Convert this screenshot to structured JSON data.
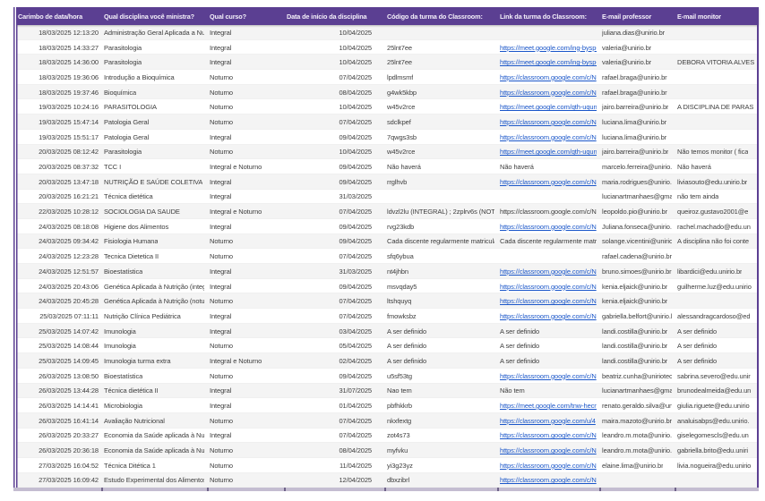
{
  "app": {
    "kind": "published-spreadsheet-responses",
    "colors": {
      "header_bg": "#5b3f92",
      "header_text": "#f4f0fa",
      "link": "#1a56c9",
      "row_alt_bg": "#f4f4f4",
      "row_bg": "#ffffff",
      "body_text": "#3d3d3d",
      "frame_border": "#5b3f92",
      "bottom_bar": "#c4bdd1"
    }
  },
  "table": {
    "columns": [
      "Carimbo de data/hora",
      "Qual disciplina você ministra?",
      "Qual curso?",
      "Data de início da disciplina",
      "Código da turma do Classroom:",
      "Link da turma do Classroom:",
      "E-mail professor",
      "E-mail monitor"
    ],
    "rows": [
      {
        "timestamp": "18/03/2025 12:13:20",
        "disciplina": "Administração Geral Aplicada a Nutr",
        "curso": "Integral",
        "inicio": "10/04/2025",
        "codigo": "",
        "link": "",
        "link_is_url": false,
        "professor": "juliana.dias@unirio.br",
        "monitor": ""
      },
      {
        "timestamp": "18/03/2025 14:33:27",
        "disciplina": "Parasitologia",
        "curso": "Integral",
        "inicio": "10/04/2025",
        "codigo": "25lnt7ee",
        "link": "https://meet.google.com/ing-bysp-",
        "link_is_url": true,
        "professor": "valeria@unirio.br",
        "monitor": ""
      },
      {
        "timestamp": "18/03/2025 14:36:00",
        "disciplina": "Parasitologia",
        "curso": "Integral",
        "inicio": "10/04/2025",
        "codigo": "25lnt7ee",
        "link": "https://meet.google.com/ing-bysp-",
        "link_is_url": true,
        "professor": "valeria@unirio.br",
        "monitor": "DEBORA VITORIA ALVES"
      },
      {
        "timestamp": "18/03/2025 19:36:06",
        "disciplina": "Introdução a Bioquímica",
        "curso": "Noturno",
        "inicio": "07/04/2025",
        "codigo": "lpdlmsmf",
        "link": "https://classroom.google.com/c/N",
        "link_is_url": true,
        "professor": "rafael.braga@unirio.br",
        "monitor": ""
      },
      {
        "timestamp": "18/03/2025 19:37:46",
        "disciplina": "Bioquímica",
        "curso": "Noturno",
        "inicio": "08/04/2025",
        "codigo": "g4wk5kbp",
        "link": "https://classroom.google.com/c/N",
        "link_is_url": true,
        "professor": "rafael.braga@unirio.br",
        "monitor": ""
      },
      {
        "timestamp": "19/03/2025 10:24:16",
        "disciplina": "PARASITOLOGIA",
        "curso": "Noturno",
        "inicio": "10/04/2025",
        "codigo": "w45v2rce",
        "link": "https://meet.google.com/qth-uqun",
        "link_is_url": true,
        "professor": "jairo.barreira@unirio.br",
        "monitor": "A DISCIPLINA DE PARAS"
      },
      {
        "timestamp": "19/03/2025 15:47:14",
        "disciplina": "Patologia Geral",
        "curso": "Noturno",
        "inicio": "07/04/2025",
        "codigo": "sdclkpef",
        "link": "https://classroom.google.com/c/N",
        "link_is_url": true,
        "professor": "luciana.lima@unirio.br",
        "monitor": ""
      },
      {
        "timestamp": "19/03/2025 15:51:17",
        "disciplina": "Patologia Geral",
        "curso": "Integral",
        "inicio": "09/04/2025",
        "codigo": "7qwgs3sb",
        "link": "https://classroom.google.com/c/N",
        "link_is_url": true,
        "professor": "luciana.lima@unirio.br",
        "monitor": ""
      },
      {
        "timestamp": "20/03/2025 08:12:42",
        "disciplina": "Parasitologia",
        "curso": "Noturno",
        "inicio": "10/04/2025",
        "codigo": "w45v2rce",
        "link": "https://meet.google.com/qth-uqun",
        "link_is_url": true,
        "professor": "jairo.barreira@unirio.br",
        "monitor": "Não temos monitor ( fica"
      },
      {
        "timestamp": "20/03/2025 08:37:32",
        "disciplina": "TCC I",
        "curso": "Integral e Noturno",
        "inicio": "09/04/2025",
        "codigo": "Não haverá",
        "link": "Não haverá",
        "link_is_url": false,
        "professor": "marcelo.ferreira@unirio.b",
        "monitor": "Não haverá"
      },
      {
        "timestamp": "20/03/2025 13:47:18",
        "disciplina": "NUTRIÇÃO E SAÚDE COLETIVA",
        "curso": "Integral",
        "inicio": "09/04/2025",
        "codigo": "rrglhvb",
        "link": "https://classroom.google.com/c/N",
        "link_is_url": true,
        "professor": "maria.rodrigues@unirio.b",
        "monitor": "liviasouto@edu.unirio.br"
      },
      {
        "timestamp": "20/03/2025 16:21:21",
        "disciplina": "Técnica dietética",
        "curso": "Integral",
        "inicio": "31/03/2025",
        "codigo": "",
        "link": "",
        "link_is_url": false,
        "professor": "lucianartmanhaes@gma",
        "monitor": "não tem ainda"
      },
      {
        "timestamp": "22/03/2025 10:28:12",
        "disciplina": "SOCIOLOGIA DA SAUDE",
        "curso": "Integral e Noturno",
        "inicio": "07/04/2025",
        "codigo": "ldvzl2lu (INTEGRAL) ; 2zplrv6s (NOTU",
        "link": "https://classroom.google.com/c/N",
        "link_is_url": false,
        "professor": "leopoldo.pio@unirio.br",
        "monitor": "queiroz.gustavo2001@e"
      },
      {
        "timestamp": "24/03/2025 08:18:08",
        "disciplina": "Higiene dos Alimentos",
        "curso": "Integral",
        "inicio": "09/04/2025",
        "codigo": "rvg23kdb",
        "link": "https://classroom.google.com/c/N",
        "link_is_url": true,
        "professor": "Juliana.fonseca@unirio.b",
        "monitor": "rachel.machado@edu.un"
      },
      {
        "timestamp": "24/03/2025 09:34:42",
        "disciplina": "Fisiologia Humana",
        "curso": "Noturno",
        "inicio": "09/04/2025",
        "codigo": "Cada discente regularmente matricula",
        "link": "Cada discente regularmente matric",
        "link_is_url": false,
        "professor": "solange.vicentini@unirio",
        "monitor": "A disciplina não foi conte"
      },
      {
        "timestamp": "24/03/2025 12:23:28",
        "disciplina": "Tecnica Dietetica II",
        "curso": "Noturno",
        "inicio": "07/04/2025",
        "codigo": "sfq6ybua",
        "link": "",
        "link_is_url": false,
        "professor": "rafael.cadena@unirio.br",
        "monitor": ""
      },
      {
        "timestamp": "24/03/2025 12:51:57",
        "disciplina": "Bioestatística",
        "curso": "Integral",
        "inicio": "31/03/2025",
        "codigo": "nt4jhbn",
        "link": "https://classroom.google.com/c/N",
        "link_is_url": true,
        "professor": "bruno.simoes@unirio.br",
        "monitor": "libardici@edu.unirio.br"
      },
      {
        "timestamp": "24/03/2025 20:43:06",
        "disciplina": "Genética Aplicada à Nutrição (integr",
        "curso": "Integral",
        "inicio": "09/04/2025",
        "codigo": "msvqday5",
        "link": "https://classroom.google.com/c/N",
        "link_is_url": true,
        "professor": "kenia.eljaick@unirio.br",
        "monitor": "guilherme.luz@edu.unirio"
      },
      {
        "timestamp": "24/03/2025 20:45:28",
        "disciplina": "Genética Aplicada à Nutrição (notur",
        "curso": "Noturno",
        "inicio": "07/04/2025",
        "codigo": "ltshquyq",
        "link": "https://classroom.google.com/c/N",
        "link_is_url": true,
        "professor": "kenia.eljaick@unirio.br",
        "monitor": ""
      },
      {
        "timestamp": "25/03/2025 07:11:11",
        "disciplina": "Nutrição Clínica Pediátrica",
        "curso": "Integral",
        "inicio": "07/04/2025",
        "codigo": "fmowksbz",
        "link": "https://classroom.google.com/c/N",
        "link_is_url": true,
        "professor": "gabriella.belfort@unirio.b",
        "monitor": "alessandragcardoso@ed"
      },
      {
        "timestamp": "25/03/2025 14:07:42",
        "disciplina": "Imunologia",
        "curso": "Integral",
        "inicio": "03/04/2025",
        "codigo": "A ser definido",
        "link": "A ser definido",
        "link_is_url": false,
        "professor": "landi.costilla@unirio.br",
        "monitor": "A ser definido"
      },
      {
        "timestamp": "25/03/2025 14:08:44",
        "disciplina": "Imunologia",
        "curso": "Noturno",
        "inicio": "05/04/2025",
        "codigo": "A ser definido",
        "link": "A ser definido",
        "link_is_url": false,
        "professor": "landi.costilla@unirio.br",
        "monitor": "A ser definido"
      },
      {
        "timestamp": "25/03/2025 14:09:45",
        "disciplina": "Imunologia  turma extra",
        "curso": "Integral e Noturno",
        "inicio": "02/04/2025",
        "codigo": "A ser definido",
        "link": "A ser definido",
        "link_is_url": false,
        "professor": "landi.costilla@unirio.br",
        "monitor": "A ser definido"
      },
      {
        "timestamp": "26/03/2025 13:08:50",
        "disciplina": "Bioestatística",
        "curso": "Noturno",
        "inicio": "09/04/2025",
        "codigo": "u5sf53tg",
        "link": "https://classroom.google.com/c/N",
        "link_is_url": true,
        "professor": "beatriz.cunha@uniriotec.",
        "monitor": "sabrina.severo@edu.unir"
      },
      {
        "timestamp": "26/03/2025 13:44:28",
        "disciplina": "Técnica dietética II",
        "curso": "Integral",
        "inicio": "31/07/2025",
        "codigo": "Nao tem",
        "link": "Não tem",
        "link_is_url": false,
        "professor": "lucianartmanhaes@gma",
        "monitor": "brunodealmeida@edu.un"
      },
      {
        "timestamp": "26/03/2025 14:14:41",
        "disciplina": "Microbiologia",
        "curso": "Integral",
        "inicio": "01/04/2025",
        "codigo": "pbfhkkrb",
        "link": "https://meet.google.com/tnw-hecn",
        "link_is_url": true,
        "professor": "renato.geraldo.silva@uni",
        "monitor": "giulia.riguete@edu.unirio"
      },
      {
        "timestamp": "26/03/2025 16:41:14",
        "disciplina": "Avaliação Nutricional",
        "curso": "Noturno",
        "inicio": "07/04/2025",
        "codigo": "nkxfextg",
        "link": "https://classroom.google.com/u/4",
        "link_is_url": true,
        "professor": "maira.mazoto@unirio.br",
        "monitor": "analuisabps@edu.unirio."
      },
      {
        "timestamp": "26/03/2025 20:33:27",
        "disciplina": "Economia da Saúde aplicada à Nutri",
        "curso": "Integral",
        "inicio": "07/04/2025",
        "codigo": "zot4s73",
        "link": "https://classroom.google.com/c/N",
        "link_is_url": true,
        "professor": "leandro.m.mota@unirio.b",
        "monitor": "giselegomescls@edu.un"
      },
      {
        "timestamp": "26/03/2025 20:36:18",
        "disciplina": "Economia da Saúde aplicada à Nutri",
        "curso": "Noturno",
        "inicio": "08/04/2025",
        "codigo": "myfvku",
        "link": "https://classroom.google.com/c/N",
        "link_is_url": true,
        "professor": "leandro.m.mota@unirio.b",
        "monitor": "gabriella.brito@edu.uniri"
      },
      {
        "timestamp": "27/03/2025 16:04:52",
        "disciplina": "Técnica Ditética 1",
        "curso": "Noturno",
        "inicio": "11/04/2025",
        "codigo": "yi3g23yz",
        "link": "https://classroom.google.com/c/N",
        "link_is_url": true,
        "professor": "elaine.lima@unirio.br",
        "monitor": "livia.nogueira@edu.unirio"
      },
      {
        "timestamp": "27/03/2025 16:09:42",
        "disciplina": "Estudo Experimental dos Alimentos",
        "curso": "Noturno",
        "inicio": "12/04/2025",
        "codigo": "dbxzibrl",
        "link": "https://classroom.google.com/c/N",
        "link_is_url": true,
        "professor": "",
        "monitor": ""
      }
    ]
  }
}
